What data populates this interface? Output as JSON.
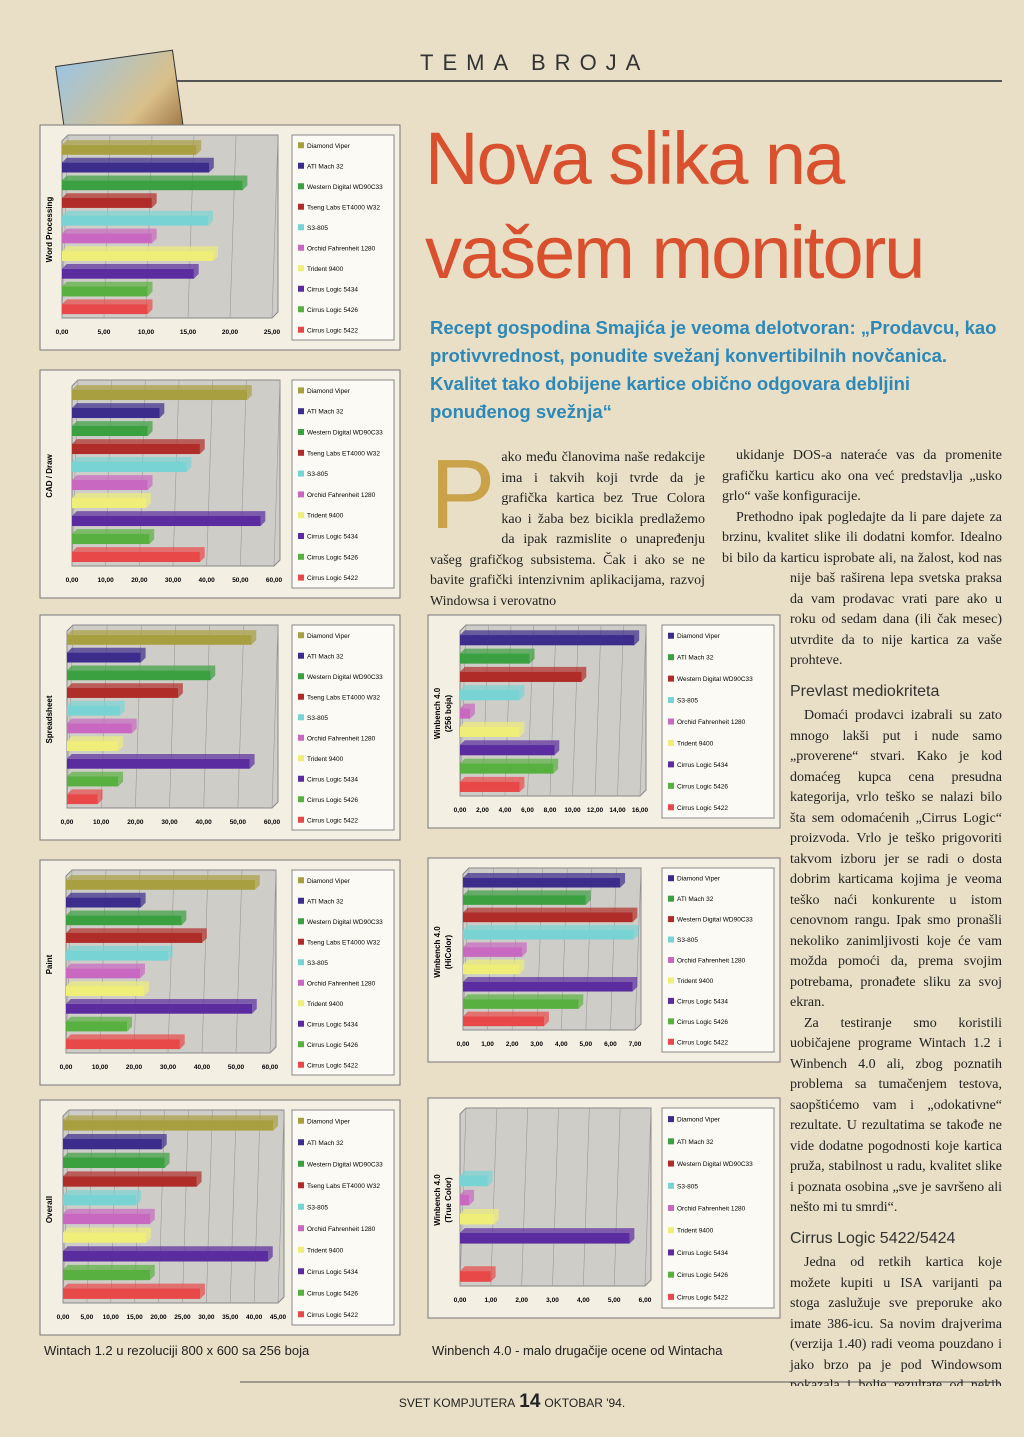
{
  "header": {
    "section": "TEMA BROJA"
  },
  "article": {
    "title": "Nova slika na vašem monitoru",
    "lead": "Recept gospodina Smajića je veoma delotvoran: „Prodavcu, kao protivvrednost, ponudite svežanj konvertibilnih novčanica. Kvalitet tako dobijene kartice obično odgovara debljini ponuđenog svežnja“",
    "drop_cap": "P",
    "column1": "ako među članovima naše redakcije ima i takvih koji tvrde da je grafička kartica bez True Colora kao i žaba bez bicikla predlažemo da ipak razmislite o unapređenju vašeg grafičkog subsistema. Čak i ako se ne bavite grafički intenzivnim aplikacijama, razvoj Windowsa i verovatno",
    "column2": [
      {
        "p": "ukidanje DOS-a nateraće vas da promenite grafičku karticu ako ona već predstavlja „usko grlo“ vaše konfiguracije."
      },
      {
        "p": "Prethodno ipak pogledajte da li pare dajete za brzinu, kvalitet slike ili dodatni komfor. Idealno bi bilo da karticu isprobate ali, na žalost, kod nas nije baš raširena lepa svetska praksa da vam prodavac vrati pare ako u roku od sedam dana (ili čak mesec) utvrdite da to nije kartica za vaše prohteve."
      },
      {
        "h": "Prevlast mediokriteta"
      },
      {
        "p": "Domaći prodavci izabrali su zato mnogo lakši put i nude samo „proverene“ stvari. Kako je kod domaćeg kupca cena presudna kategorija, vrlo teško se nalazi bilo šta sem odomaćenih „Cirrus Logic“ proizvoda. Vrlo je teško prigovoriti takvom izboru jer se radi o dosta dobrim karticama kojima je veoma teško naći konkurente u istom cenovnom rangu. Ipak smo pronašli nekoliko zanimljivosti koje će vam možda pomoći da, prema svojim potrebama, pronađete sliku za svoj ekran."
      },
      {
        "p": "Za testiranje smo koristili uobičajene programe Wintach 1.2 i Winbench 4.0 ali, zbog poznatih problema sa tumačenjem testova, saopštićemo vam i „odokativne“ rezultate. U rezultatima se takođe ne vide dodatne pogodnosti koje kartica pruža, stabilnost u radu, kvalitet slike i poznata osobina „sve je savršeno ali nešto mi tu smrdi“."
      },
      {
        "h": "Cirrus Logic 5422/5424"
      },
      {
        "p": "Jedna od retkih kartica koje možete kupiti u ISA varijanti pa stoga zaslužuje sve preporuke ako imate 386-icu. Sa novim drajverima (verzija 1.40) radi veoma pouzdano i jako brzo pa je pod Windowsom pokazala i bolje rezultate od nekih „ozbiljnijih“ konkurenata. U nedostatke mo-"
      }
    ]
  },
  "captions": [
    "Wintach 1.2 u rezoluciji 800 x 600 sa 256 boja",
    "Winbench 4.0 - malo drugačije ocene od Wintacha"
  ],
  "footer": {
    "magazine": "SVET KOMPJUTERA",
    "page": 14,
    "issue": "OKTOBAR '94."
  },
  "chart_data": [
    {
      "type": "bar",
      "ylabel": [
        "Word Processing"
      ],
      "categories": [
        "Diamond Viper",
        "ATI Mach 32",
        "Western Digital WD90C33",
        "Tseng Labs ET4000 W32",
        "S3-805",
        "Orchid Fahrenheit 1280",
        "Trident 9400",
        "Cirrus Logic 5434",
        "Cirrus Logic 5426",
        "Cirrus Logic 5422"
      ],
      "values": [
        16,
        17.5,
        21.5,
        10.7,
        17.4,
        10.7,
        18,
        15.7,
        10.2,
        10.2
      ],
      "colors": [
        "#a8a040",
        "#3c2c8c",
        "#3aa040",
        "#b02c28",
        "#78d4d4",
        "#c868c0",
        "#eeee78",
        "#5a2ca0",
        "#58b040",
        "#e84848"
      ],
      "xlim": [
        0,
        25
      ],
      "xticks": [
        {
          "value": 0,
          "label": "0,00"
        },
        {
          "value": 5,
          "label": "5,00"
        },
        {
          "value": 10,
          "label": "10,00"
        },
        {
          "value": 15,
          "label": "15,00"
        },
        {
          "value": 20,
          "label": "20,00"
        },
        {
          "value": 25,
          "label": "25,00"
        }
      ]
    },
    {
      "type": "bar",
      "ylabel": [
        "CAD / Draw"
      ],
      "categories": [
        "Diamond Viper",
        "ATI Mach 32",
        "Western Digital WD90C33",
        "Tseng Labs ET4000 W32",
        "S3-805",
        "Orchid Fahrenheit 1280",
        "Trident 9400",
        "Cirrus Logic 5434",
        "Cirrus Logic 5426",
        "Cirrus Logic 5422"
      ],
      "values": [
        52,
        26,
        22.5,
        38,
        34,
        22.5,
        22,
        56,
        23,
        38
      ],
      "colors": [
        "#a8a040",
        "#3c2c8c",
        "#3aa040",
        "#b02c28",
        "#78d4d4",
        "#c868c0",
        "#eeee78",
        "#5a2ca0",
        "#58b040",
        "#e84848"
      ],
      "xlim": [
        0,
        60
      ],
      "xticks": [
        {
          "value": 0,
          "label": "0,00"
        },
        {
          "value": 10,
          "label": "10,00"
        },
        {
          "value": 20,
          "label": "20,00"
        },
        {
          "value": 30,
          "label": "30,00"
        },
        {
          "value": 40,
          "label": "40,00"
        },
        {
          "value": 50,
          "label": "50,00"
        },
        {
          "value": 60,
          "label": "60,00"
        }
      ]
    },
    {
      "type": "bar",
      "ylabel": [
        "Spreadsheet"
      ],
      "categories": [
        "Diamond Viper",
        "ATI Mach 32",
        "Western Digital WD90C33",
        "Tseng Labs ET4000 W32",
        "S3-805",
        "Orchid Fahrenheit 1280",
        "Trident 9400",
        "Cirrus Logic 5434",
        "Cirrus Logic 5426",
        "Cirrus Logic 5422"
      ],
      "values": [
        54,
        21.6,
        42,
        32.5,
        15.5,
        19,
        15,
        53.5,
        15,
        9
      ],
      "colors": [
        "#a8a040",
        "#3c2c8c",
        "#3aa040",
        "#b02c28",
        "#78d4d4",
        "#c868c0",
        "#eeee78",
        "#5a2ca0",
        "#58b040",
        "#e84848"
      ],
      "xlim": [
        0,
        60
      ],
      "xticks": [
        {
          "value": 0,
          "label": "0,00"
        },
        {
          "value": 10,
          "label": "10,00"
        },
        {
          "value": 20,
          "label": "20,00"
        },
        {
          "value": 30,
          "label": "30,00"
        },
        {
          "value": 40,
          "label": "40,00"
        },
        {
          "value": 50,
          "label": "50,00"
        },
        {
          "value": 60,
          "label": "60,00"
        }
      ]
    },
    {
      "type": "bar",
      "ylabel": [
        "Paint"
      ],
      "categories": [
        "Diamond Viper",
        "ATI Mach 32",
        "Western Digital WD90C33",
        "Tseng Labs ET4000 W32",
        "S3-805",
        "Orchid Fahrenheit 1280",
        "Trident 9400",
        "Cirrus Logic 5434",
        "Cirrus Logic 5426",
        "Cirrus Logic 5422"
      ],
      "values": [
        55.6,
        22,
        34,
        40,
        30,
        21.8,
        23,
        54.7,
        18,
        33.5
      ],
      "colors": [
        "#a8a040",
        "#3c2c8c",
        "#3aa040",
        "#b02c28",
        "#78d4d4",
        "#c868c0",
        "#eeee78",
        "#5a2ca0",
        "#58b040",
        "#e84848"
      ],
      "xlim": [
        0,
        60
      ],
      "xticks": [
        {
          "value": 0,
          "label": "0,00"
        },
        {
          "value": 10,
          "label": "10,00"
        },
        {
          "value": 20,
          "label": "20,00"
        },
        {
          "value": 30,
          "label": "30,00"
        },
        {
          "value": 40,
          "label": "40,00"
        },
        {
          "value": 50,
          "label": "50,00"
        },
        {
          "value": 60,
          "label": "60,00"
        }
      ]
    },
    {
      "type": "bar",
      "ylabel": [
        "Overall"
      ],
      "categories": [
        "Diamond Viper",
        "ATI Mach 32",
        "Western Digital WD90C33",
        "Tseng Labs ET4000 W32",
        "S3-805",
        "Orchid Fahrenheit 1280",
        "Trident 9400",
        "Cirrus Logic 5434",
        "Cirrus Logic 5426",
        "Cirrus Logic 5422"
      ],
      "values": [
        44,
        20.7,
        21.3,
        28,
        15.3,
        18.2,
        17.4,
        42.9,
        18.2,
        28.7
      ],
      "colors": [
        "#a8a040",
        "#3c2c8c",
        "#3aa040",
        "#b02c28",
        "#78d4d4",
        "#c868c0",
        "#eeee78",
        "#5a2ca0",
        "#58b040",
        "#e84848"
      ],
      "xlim": [
        0,
        45
      ],
      "xticks": [
        {
          "value": 0,
          "label": "0,00"
        },
        {
          "value": 5,
          "label": "5,00"
        },
        {
          "value": 10,
          "label": "10,00"
        },
        {
          "value": 15,
          "label": "15,00"
        },
        {
          "value": 20,
          "label": "20,00"
        },
        {
          "value": 25,
          "label": "25,00"
        },
        {
          "value": 30,
          "label": "30,00"
        },
        {
          "value": 35,
          "label": "35,00"
        },
        {
          "value": 40,
          "label": "40,00"
        },
        {
          "value": 45,
          "label": "45,00"
        }
      ]
    },
    {
      "type": "bar",
      "ylabel": [
        "Winbench 4.0",
        "(256 boja)"
      ],
      "categories": [
        "Diamond Viper",
        "ATI Mach 32",
        "Western Digital WD90C33",
        "S3-805",
        "Orchid Fahrenheit 1280",
        "Trident 9400",
        "Cirrus Logic 5434",
        "Cirrus Logic 5426",
        "Cirrus Logic 5422"
      ],
      "values": [
        15.5,
        6.2,
        10.8,
        5.3,
        0.9,
        5.3,
        8.4,
        8.3,
        5.3
      ],
      "colors": [
        "#3c2c8c",
        "#3aa040",
        "#b02c28",
        "#78d4d4",
        "#c868c0",
        "#eeee78",
        "#5a2ca0",
        "#58b040",
        "#e84848"
      ],
      "xlim": [
        0,
        16
      ],
      "xticks": [
        {
          "value": 0,
          "label": "0,00"
        },
        {
          "value": 2,
          "label": "2,00"
        },
        {
          "value": 4,
          "label": "4,00"
        },
        {
          "value": 6,
          "label": "6,00"
        },
        {
          "value": 8,
          "label": "8,00"
        },
        {
          "value": 10,
          "label": "10,00"
        },
        {
          "value": 12,
          "label": "12,00"
        },
        {
          "value": 14,
          "label": "14,00"
        },
        {
          "value": 16,
          "label": "16,00"
        }
      ]
    },
    {
      "type": "bar",
      "ylabel": [
        "Winbench 4.0",
        "(HiColor)"
      ],
      "categories": [
        "Diamond Viper",
        "ATI Mach 32",
        "Western Digital WD90C33",
        "S3-805",
        "Orchid Fahrenheit 1280",
        "Trident 9400",
        "Cirrus Logic 5434",
        "Cirrus Logic 5426",
        "Cirrus Logic 5422"
      ],
      "values": [
        6.4,
        5,
        6.9,
        6.95,
        2.4,
        2.3,
        6.9,
        4.7,
        3.3
      ],
      "colors": [
        "#3c2c8c",
        "#3aa040",
        "#b02c28",
        "#78d4d4",
        "#c868c0",
        "#eeee78",
        "#5a2ca0",
        "#58b040",
        "#e84848"
      ],
      "xlim": [
        0,
        7
      ],
      "xticks": [
        {
          "value": 0,
          "label": "0,00"
        },
        {
          "value": 1,
          "label": "1,00"
        },
        {
          "value": 2,
          "label": "2,00"
        },
        {
          "value": 3,
          "label": "3,00"
        },
        {
          "value": 4,
          "label": "4,00"
        },
        {
          "value": 5,
          "label": "5,00"
        },
        {
          "value": 6,
          "label": "6,00"
        },
        {
          "value": 7,
          "label": "7,00"
        }
      ]
    },
    {
      "type": "bar",
      "ylabel": [
        "Winbench 4.0",
        "(True Color)"
      ],
      "categories": [
        "Diamond Viper",
        "ATI Mach 32",
        "Western Digital WD90C33",
        "S3-805",
        "Orchid Fahrenheit 1280",
        "Trident 9400",
        "Cirrus Logic 5434",
        "Cirrus Logic 5426",
        "Cirrus Logic 5422"
      ],
      "values": [
        null,
        null,
        null,
        0.9,
        0.3,
        1.1,
        5.5,
        null,
        1
      ],
      "colors": [
        "#3c2c8c",
        "#3aa040",
        "#b02c28",
        "#78d4d4",
        "#c868c0",
        "#eeee78",
        "#5a2ca0",
        "#58b040",
        "#e84848"
      ],
      "xlim": [
        0,
        6
      ],
      "xticks": [
        {
          "value": 0,
          "label": "0,00"
        },
        {
          "value": 1,
          "label": "1,00"
        },
        {
          "value": 2,
          "label": "2,00"
        },
        {
          "value": 3,
          "label": "3,00"
        },
        {
          "value": 4,
          "label": "4,00"
        },
        {
          "value": 5,
          "label": "5,00"
        },
        {
          "value": 6,
          "label": "6,00"
        }
      ]
    }
  ]
}
